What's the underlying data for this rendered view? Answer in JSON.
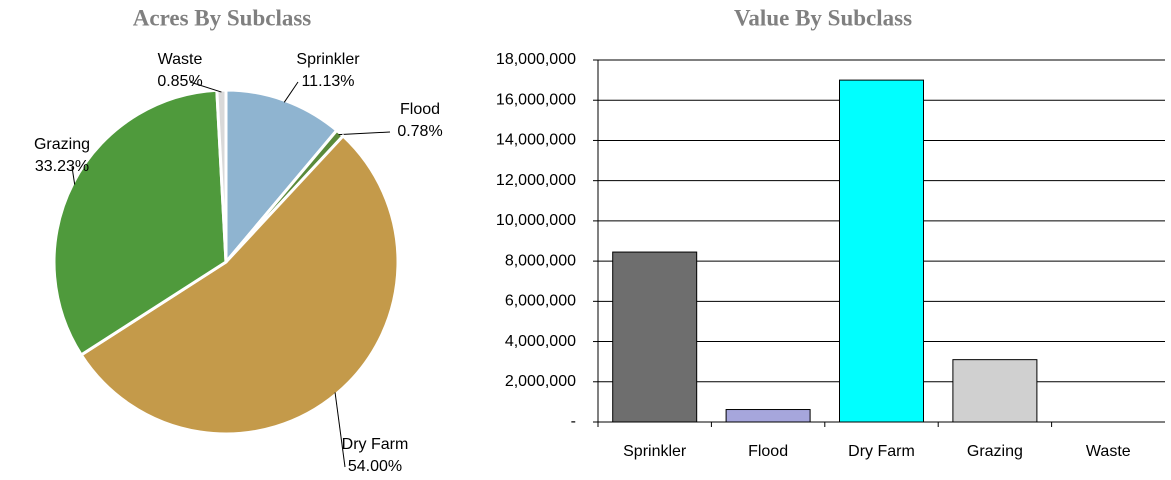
{
  "chart_data": [
    {
      "type": "pie",
      "title": "Acres By Subclass",
      "categories": [
        "Sprinkler",
        "Flood",
        "Dry Farm",
        "Grazing",
        "Waste"
      ],
      "values": [
        11.13,
        0.78,
        54.0,
        33.23,
        0.85
      ],
      "value_labels": [
        "11.13%",
        "0.78%",
        "54.00%",
        "33.23%",
        "0.85%"
      ],
      "colors": [
        "#8fb4d0",
        "#5a8a3a",
        "#c49a4a",
        "#4f9a3c",
        "#d9d9d9"
      ]
    },
    {
      "type": "bar",
      "title": "Value By Subclass",
      "categories": [
        "Sprinkler",
        "Flood",
        "Dry Farm",
        "Grazing",
        "Waste"
      ],
      "values": [
        8450000,
        620000,
        17000000,
        3100000,
        0
      ],
      "colors": [
        "#6e6e6e",
        "#a6a6dc",
        "#00ffff",
        "#d0d0d0",
        "#ffffff"
      ],
      "ylim": [
        0,
        18000000
      ],
      "yticks": [
        {
          "value": 0,
          "label": "-"
        },
        {
          "value": 2000000,
          "label": "2,000,000"
        },
        {
          "value": 4000000,
          "label": "4,000,000"
        },
        {
          "value": 6000000,
          "label": "6,000,000"
        },
        {
          "value": 8000000,
          "label": "8,000,000"
        },
        {
          "value": 10000000,
          "label": "10,000,000"
        },
        {
          "value": 12000000,
          "label": "12,000,000"
        },
        {
          "value": 14000000,
          "label": "14,000,000"
        },
        {
          "value": 16000000,
          "label": "16,000,000"
        },
        {
          "value": 18000000,
          "label": "18,000,000"
        }
      ],
      "grid": true
    }
  ]
}
